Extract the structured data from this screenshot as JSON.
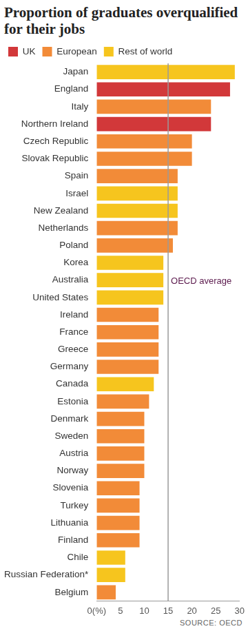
{
  "chart_data": {
    "type": "bar",
    "title": "Proportion of graduates overqualified for their jobs",
    "orientation": "horizontal",
    "categories": [
      "Japan",
      "England",
      "Italy",
      "Northern Ireland",
      "Czech Republic",
      "Slovak Republic",
      "Spain",
      "Israel",
      "New Zealand",
      "Netherlands",
      "Poland",
      "Korea",
      "Australia",
      "United States",
      "Ireland",
      "France",
      "Greece",
      "Germany",
      "Canada",
      "Estonia",
      "Denmark",
      "Sweden",
      "Austria",
      "Norway",
      "Slovenia",
      "Turkey",
      "Lithuania",
      "Finland",
      "Chile",
      "Russian Federation*",
      "Belgium"
    ],
    "series": [
      {
        "name": "UK",
        "color": "#d2383a",
        "values": [
          null,
          28,
          null,
          24,
          null,
          null,
          null,
          null,
          null,
          null,
          null,
          null,
          null,
          null,
          null,
          null,
          null,
          null,
          null,
          null,
          null,
          null,
          null,
          null,
          null,
          null,
          null,
          null,
          null,
          null,
          null
        ]
      },
      {
        "name": "European",
        "color": "#f28b38",
        "values": [
          null,
          null,
          24,
          null,
          20,
          20,
          17,
          null,
          null,
          17,
          16,
          null,
          null,
          null,
          13,
          13,
          13,
          13,
          null,
          11,
          10,
          10,
          10,
          10,
          9,
          9,
          9,
          9,
          null,
          null,
          4
        ]
      },
      {
        "name": "Rest of world",
        "color": "#f6c51e",
        "values": [
          29,
          null,
          null,
          null,
          null,
          null,
          null,
          17,
          17,
          null,
          null,
          14,
          14,
          14,
          null,
          null,
          null,
          null,
          12,
          null,
          null,
          null,
          null,
          null,
          null,
          null,
          null,
          null,
          6,
          6,
          null
        ]
      }
    ],
    "xlim": [
      0,
      30
    ],
    "xticks": [
      {
        "value": 0,
        "label": "0(%)"
      },
      5,
      10,
      15,
      20,
      25,
      30
    ],
    "grid": false,
    "legend": "top-left",
    "reference_line": {
      "value": 15,
      "label": "OECD average"
    },
    "source": "SOURCE: OECD"
  }
}
